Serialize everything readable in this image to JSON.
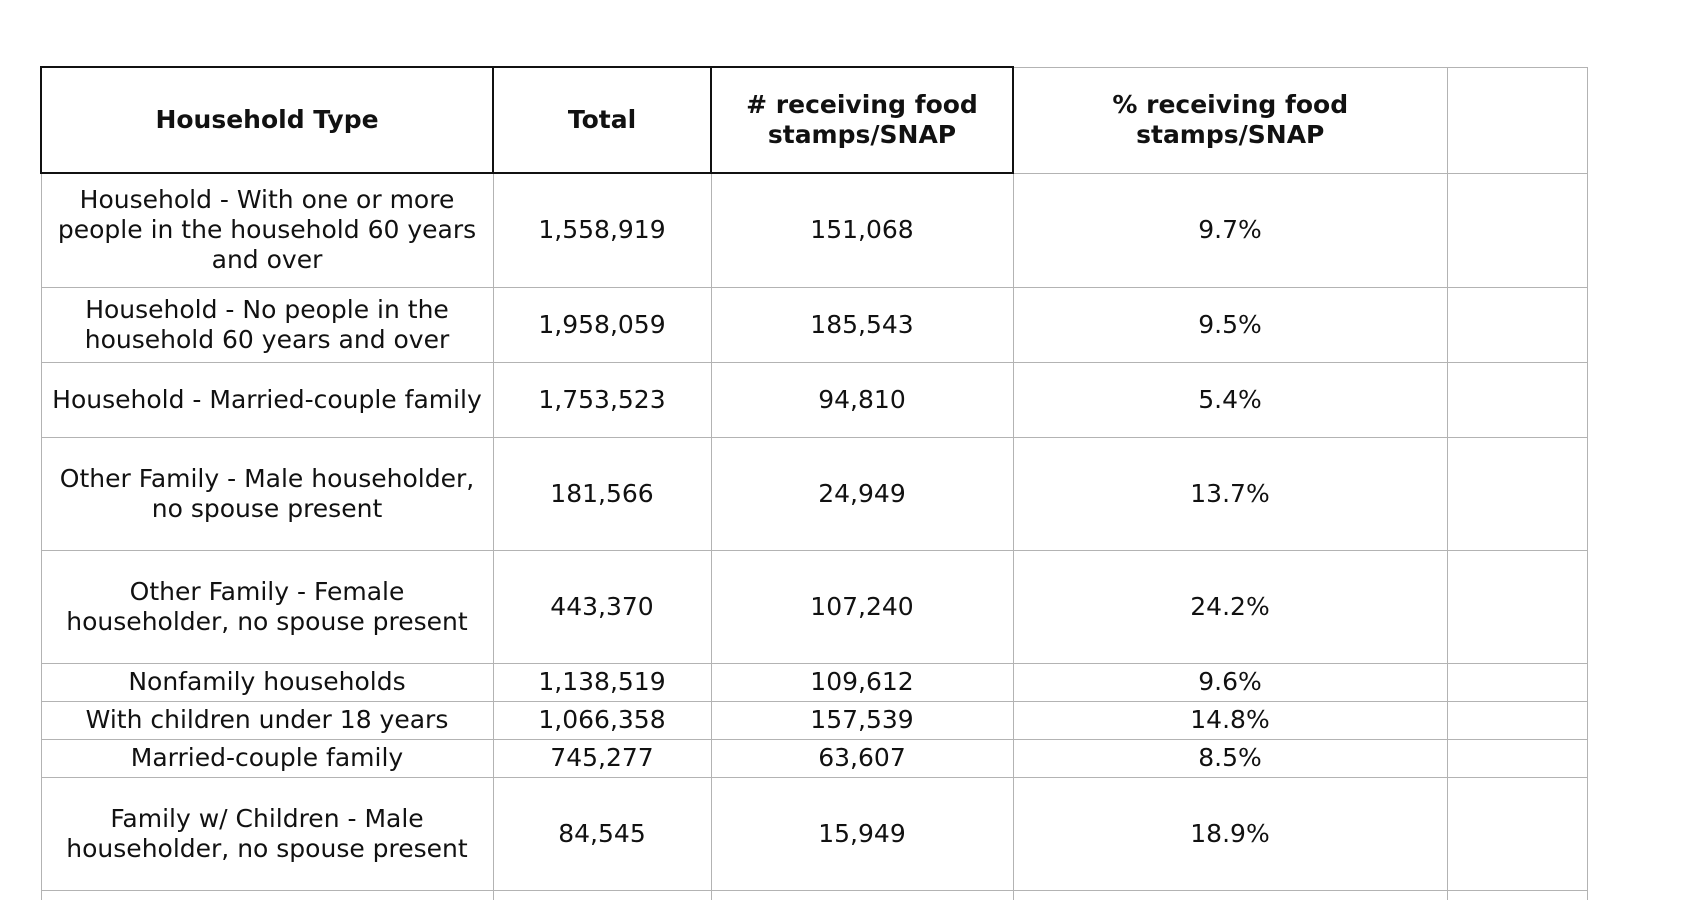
{
  "table": {
    "headers": [
      "Household Type",
      "Total",
      "# receiving food stamps/SNAP",
      "% receiving food stamps/SNAP",
      ""
    ],
    "rows": [
      {
        "type": "Household - With one or more people in the household 60 years and over",
        "total": "1,558,919",
        "receiving": "151,068",
        "percent": "9.7%"
      },
      {
        "type": "Household - No people in the household 60 years and over",
        "total": "1,958,059",
        "receiving": "185,543",
        "percent": "9.5%"
      },
      {
        "type": "Household - Married-couple family",
        "total": "1,753,523",
        "receiving": "94,810",
        "percent": "5.4%"
      },
      {
        "type": "Other Family - Male householder, no spouse present",
        "total": "181,566",
        "receiving": "24,949",
        "percent": "13.7%"
      },
      {
        "type": "Other Family - Female householder, no spouse present",
        "total": "443,370",
        "receiving": "107,240",
        "percent": "24.2%"
      },
      {
        "type": "Nonfamily households",
        "total": "1,138,519",
        "receiving": "109,612",
        "percent": "9.6%"
      },
      {
        "type": "With children under 18 years",
        "total": "1,066,358",
        "receiving": "157,539",
        "percent": "14.8%"
      },
      {
        "type": "Married-couple family",
        "total": "745,277",
        "receiving": "63,607",
        "percent": "8.5%"
      },
      {
        "type": "Family w/ Children - Male householder, no spouse present",
        "total": "84,545",
        "receiving": "15,949",
        "percent": "18.9%"
      }
    ]
  }
}
